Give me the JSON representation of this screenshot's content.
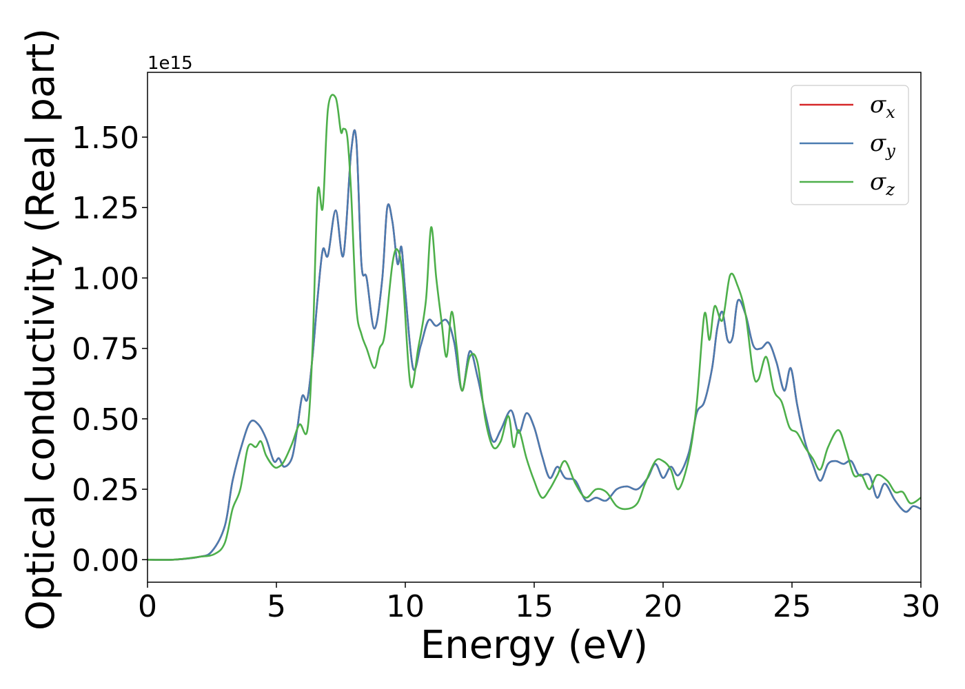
{
  "chart_data": {
    "type": "line",
    "xlabel": "Energy (eV)",
    "ylabel": "Optical conductivity (Real part)",
    "y_offset_label": "1e15",
    "y_scale": 1000000000000000.0,
    "xlim": [
      0,
      30
    ],
    "ylim": [
      -0.08,
      1.73
    ],
    "xticks": [
      0,
      5,
      10,
      15,
      20,
      25,
      30
    ],
    "xtick_labels": [
      "0",
      "5",
      "10",
      "15",
      "20",
      "25",
      "30"
    ],
    "yticks": [
      0.0,
      0.25,
      0.5,
      0.75,
      1.0,
      1.25,
      1.5
    ],
    "ytick_labels": [
      "0.00",
      "0.25",
      "0.50",
      "0.75",
      "1.00",
      "1.25",
      "1.50"
    ],
    "grid": false,
    "legend_position": "top-right",
    "colors": {
      "sigma_x": "#d62728",
      "sigma_y": "#4a7bb0",
      "sigma_z": "#4daf4a"
    },
    "series": [
      {
        "name": "σx",
        "name_base": "σ",
        "name_sub": "x",
        "color": "#d62728",
        "x": [
          0,
          1,
          2,
          2.5,
          3,
          3.3,
          3.7,
          4.0,
          4.3,
          4.6,
          4.9,
          5.1,
          5.3,
          5.6,
          5.8,
          6.0,
          6.2,
          6.4,
          6.6,
          6.8,
          7.0,
          7.3,
          7.6,
          7.9,
          8.1,
          8.3,
          8.5,
          8.8,
          9.1,
          9.3,
          9.5,
          9.7,
          9.85,
          10.0,
          10.3,
          10.6,
          10.9,
          11.2,
          11.6,
          11.9,
          12.2,
          12.5,
          12.8,
          13.1,
          13.4,
          13.7,
          14.1,
          14.4,
          14.7,
          15.0,
          15.3,
          15.6,
          15.9,
          16.2,
          16.6,
          17.0,
          17.4,
          17.8,
          18.2,
          18.6,
          19.0,
          19.4,
          19.7,
          20.0,
          20.3,
          20.6,
          21.0,
          21.3,
          21.6,
          21.9,
          22.1,
          22.3,
          22.5,
          22.7,
          22.9,
          23.2,
          23.5,
          23.8,
          24.1,
          24.4,
          24.7,
          24.95,
          25.2,
          25.5,
          25.8,
          26.1,
          26.4,
          26.7,
          27.0,
          27.3,
          27.6,
          28.0,
          28.3,
          28.6,
          29.0,
          29.4,
          29.7,
          30.0
        ],
        "y": [
          0,
          0,
          0.01,
          0.03,
          0.12,
          0.28,
          0.42,
          0.49,
          0.48,
          0.43,
          0.35,
          0.36,
          0.33,
          0.36,
          0.46,
          0.58,
          0.57,
          0.72,
          0.93,
          1.1,
          1.08,
          1.24,
          1.08,
          1.45,
          1.49,
          1.05,
          1.0,
          0.82,
          0.99,
          1.25,
          1.2,
          1.05,
          1.11,
          0.95,
          0.68,
          0.76,
          0.85,
          0.83,
          0.85,
          0.77,
          0.6,
          0.74,
          0.65,
          0.52,
          0.42,
          0.46,
          0.53,
          0.45,
          0.52,
          0.47,
          0.37,
          0.29,
          0.33,
          0.29,
          0.28,
          0.21,
          0.22,
          0.21,
          0.25,
          0.26,
          0.25,
          0.29,
          0.34,
          0.29,
          0.33,
          0.3,
          0.38,
          0.52,
          0.56,
          0.68,
          0.82,
          0.88,
          0.78,
          0.79,
          0.92,
          0.87,
          0.76,
          0.75,
          0.77,
          0.7,
          0.6,
          0.68,
          0.55,
          0.42,
          0.34,
          0.28,
          0.34,
          0.35,
          0.34,
          0.35,
          0.3,
          0.3,
          0.22,
          0.27,
          0.21,
          0.17,
          0.19,
          0.18
        ]
      },
      {
        "name": "σy",
        "name_base": "σ",
        "name_sub": "y",
        "color": "#4a7bb0",
        "x": [
          0,
          1,
          2,
          2.5,
          3,
          3.3,
          3.7,
          4.0,
          4.3,
          4.6,
          4.9,
          5.1,
          5.3,
          5.6,
          5.8,
          6.0,
          6.2,
          6.4,
          6.6,
          6.8,
          7.0,
          7.3,
          7.6,
          7.9,
          8.1,
          8.3,
          8.5,
          8.8,
          9.1,
          9.3,
          9.5,
          9.7,
          9.85,
          10.0,
          10.3,
          10.6,
          10.9,
          11.2,
          11.6,
          11.9,
          12.2,
          12.5,
          12.8,
          13.1,
          13.4,
          13.7,
          14.1,
          14.4,
          14.7,
          15.0,
          15.3,
          15.6,
          15.9,
          16.2,
          16.6,
          17.0,
          17.4,
          17.8,
          18.2,
          18.6,
          19.0,
          19.4,
          19.7,
          20.0,
          20.3,
          20.6,
          21.0,
          21.3,
          21.6,
          21.9,
          22.1,
          22.3,
          22.5,
          22.7,
          22.9,
          23.2,
          23.5,
          23.8,
          24.1,
          24.4,
          24.7,
          24.95,
          25.2,
          25.5,
          25.8,
          26.1,
          26.4,
          26.7,
          27.0,
          27.3,
          27.6,
          28.0,
          28.3,
          28.6,
          29.0,
          29.4,
          29.7,
          30.0
        ],
        "y": [
          0,
          0,
          0.01,
          0.03,
          0.12,
          0.28,
          0.42,
          0.49,
          0.48,
          0.43,
          0.35,
          0.36,
          0.33,
          0.36,
          0.46,
          0.58,
          0.57,
          0.72,
          0.93,
          1.1,
          1.08,
          1.24,
          1.08,
          1.45,
          1.49,
          1.05,
          1.0,
          0.82,
          0.99,
          1.25,
          1.2,
          1.05,
          1.11,
          0.95,
          0.68,
          0.76,
          0.85,
          0.83,
          0.85,
          0.77,
          0.6,
          0.74,
          0.65,
          0.52,
          0.42,
          0.46,
          0.53,
          0.45,
          0.52,
          0.47,
          0.37,
          0.29,
          0.33,
          0.29,
          0.28,
          0.21,
          0.22,
          0.21,
          0.25,
          0.26,
          0.25,
          0.29,
          0.34,
          0.29,
          0.33,
          0.3,
          0.38,
          0.52,
          0.56,
          0.68,
          0.82,
          0.88,
          0.78,
          0.79,
          0.92,
          0.87,
          0.76,
          0.75,
          0.77,
          0.7,
          0.6,
          0.68,
          0.55,
          0.42,
          0.34,
          0.28,
          0.34,
          0.35,
          0.34,
          0.35,
          0.3,
          0.3,
          0.22,
          0.27,
          0.21,
          0.17,
          0.19,
          0.18
        ]
      },
      {
        "name": "σz",
        "name_base": "σ",
        "name_sub": "z",
        "color": "#4daf4a",
        "x": [
          0,
          1,
          2,
          2.6,
          3.0,
          3.3,
          3.6,
          3.9,
          4.2,
          4.4,
          4.6,
          4.9,
          5.1,
          5.3,
          5.6,
          5.9,
          6.2,
          6.4,
          6.6,
          6.8,
          7.0,
          7.3,
          7.5,
          7.6,
          7.75,
          7.9,
          8.1,
          8.3,
          8.5,
          8.8,
          9.0,
          9.2,
          9.5,
          9.7,
          9.9,
          10.2,
          10.5,
          10.8,
          11.0,
          11.2,
          11.4,
          11.6,
          11.8,
          12.0,
          12.2,
          12.5,
          12.8,
          13.1,
          13.4,
          13.7,
          14.0,
          14.2,
          14.4,
          14.7,
          15.0,
          15.3,
          15.6,
          15.9,
          16.2,
          16.6,
          17.0,
          17.4,
          17.8,
          18.2,
          18.6,
          19.0,
          19.3,
          19.7,
          20.0,
          20.3,
          20.6,
          21.0,
          21.3,
          21.6,
          21.8,
          22.0,
          22.3,
          22.6,
          22.9,
          23.2,
          23.5,
          23.7,
          24.0,
          24.3,
          24.6,
          24.9,
          25.2,
          25.5,
          25.8,
          26.1,
          26.4,
          26.8,
          27.1,
          27.4,
          27.7,
          28.0,
          28.3,
          28.7,
          29.0,
          29.3,
          29.6,
          30.0
        ],
        "y": [
          0,
          0,
          0.01,
          0.02,
          0.06,
          0.18,
          0.25,
          0.4,
          0.4,
          0.42,
          0.37,
          0.33,
          0.33,
          0.35,
          0.41,
          0.48,
          0.46,
          0.75,
          1.3,
          1.25,
          1.6,
          1.64,
          1.52,
          1.53,
          1.5,
          1.3,
          0.9,
          0.8,
          0.75,
          0.68,
          0.75,
          0.8,
          1.05,
          1.1,
          1.0,
          0.62,
          0.75,
          0.92,
          1.18,
          1.0,
          0.85,
          0.72,
          0.88,
          0.75,
          0.6,
          0.72,
          0.7,
          0.5,
          0.4,
          0.42,
          0.51,
          0.4,
          0.46,
          0.36,
          0.28,
          0.22,
          0.25,
          0.3,
          0.35,
          0.27,
          0.22,
          0.25,
          0.24,
          0.19,
          0.18,
          0.2,
          0.27,
          0.35,
          0.35,
          0.32,
          0.25,
          0.36,
          0.55,
          0.87,
          0.78,
          0.9,
          0.85,
          1.01,
          0.97,
          0.87,
          0.66,
          0.64,
          0.72,
          0.6,
          0.56,
          0.47,
          0.45,
          0.4,
          0.36,
          0.32,
          0.4,
          0.46,
          0.39,
          0.3,
          0.3,
          0.25,
          0.3,
          0.28,
          0.24,
          0.24,
          0.2,
          0.22
        ]
      }
    ]
  }
}
